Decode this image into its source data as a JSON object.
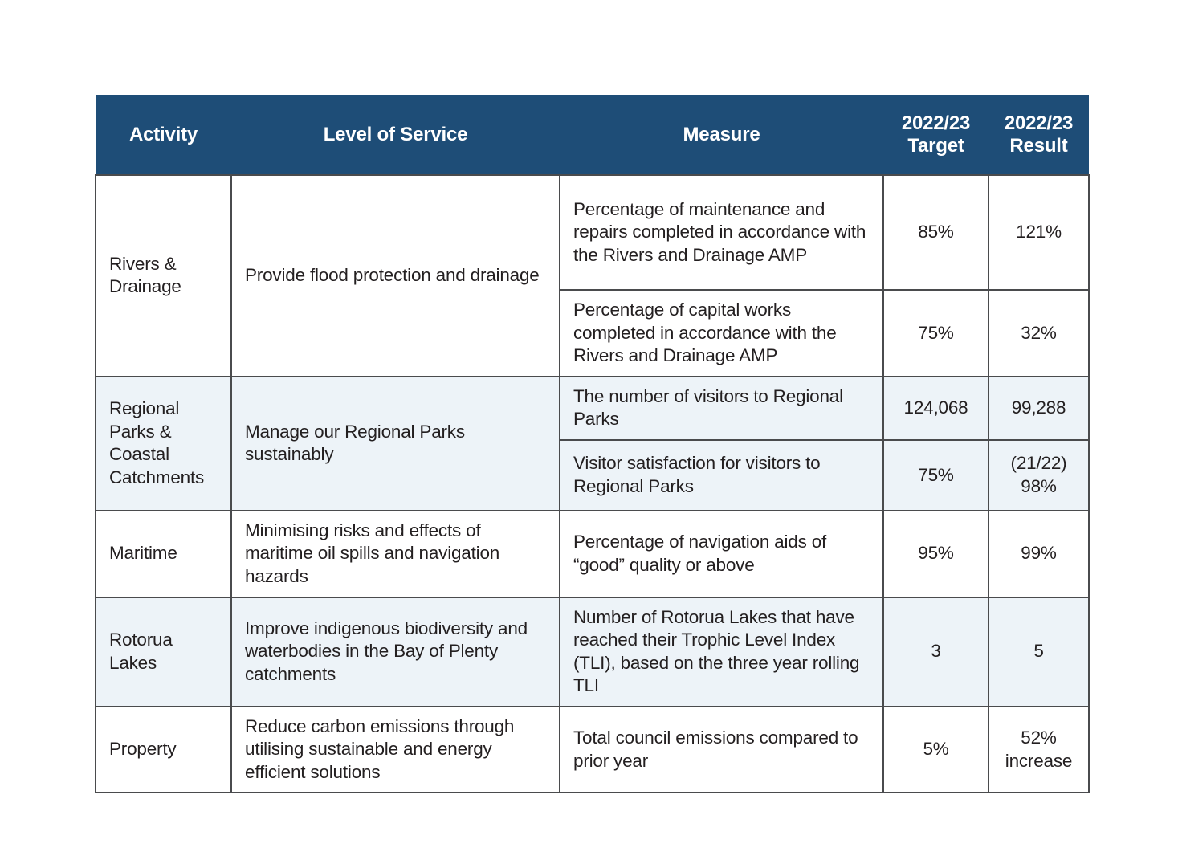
{
  "theme": {
    "header_bg": "#1e4d77",
    "shaded_row_bg": "#edf3f8",
    "text_color": "#231f20",
    "grid_color": "#4a4b4d"
  },
  "table": {
    "headers": {
      "activity": "Activity",
      "service": "Level of Service",
      "measure": "Measure",
      "target": "2022/23 Target",
      "result": "2022/23 Result"
    },
    "groups": [
      {
        "activity": "Rivers & Drainage",
        "service": "Provide flood protection and drainage",
        "shaded": false,
        "measures": [
          {
            "measure": "Percentage of maintenance and repairs completed in accordance with the Rivers and Drainage AMP",
            "target": "85%",
            "result": "121%"
          },
          {
            "measure": "Percentage of capital works completed in accordance with the Rivers and Drainage AMP",
            "target": "75%",
            "result": "32%"
          }
        ]
      },
      {
        "activity": "Regional Parks & Coastal Catchments",
        "service": "Manage our Regional Parks sustainably",
        "shaded": true,
        "measures": [
          {
            "measure": "The number of visitors to Regional Parks",
            "target": "124,068",
            "result": "99,288"
          },
          {
            "measure": "Visitor satisfaction for visitors to Regional Parks",
            "target": "75%",
            "result": "(21/22) 98%"
          }
        ]
      },
      {
        "activity": "Maritime",
        "service": "Minimising risks and effects of maritime oil spills and navigation hazards",
        "shaded": false,
        "measures": [
          {
            "measure": "Percentage of navigation aids of “good” quality or above",
            "target": "95%",
            "result": "99%"
          }
        ]
      },
      {
        "activity": "Rotorua Lakes",
        "service": "Improve indigenous biodiversity and waterbodies in the Bay of Plenty catchments",
        "shaded": true,
        "measures": [
          {
            "measure": "Number of Rotorua Lakes that have reached their Trophic Level Index (TLI), based on the three year rolling TLI",
            "target": "3",
            "result": "5"
          }
        ]
      },
      {
        "activity": "Property",
        "service": "Reduce carbon emissions through utilising sustainable and energy efficient solutions",
        "shaded": false,
        "measures": [
          {
            "measure": "Total council emissions compared to prior year",
            "target": "5%",
            "result": "52% increase"
          }
        ]
      }
    ]
  }
}
